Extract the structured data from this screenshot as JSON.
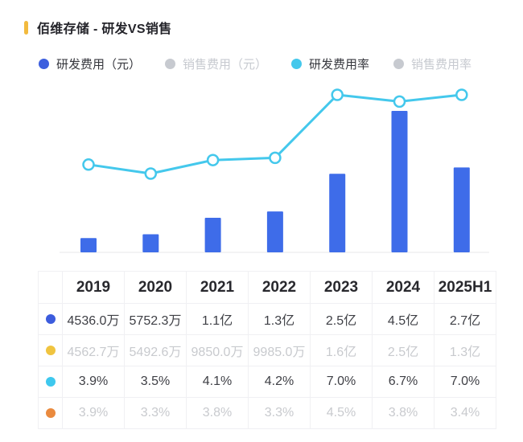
{
  "header": {
    "title": "佰维存储 - 研发VS销售",
    "accent_color": "#F2BA3E"
  },
  "legend": [
    {
      "label": "研发费用（元）",
      "color": "#3D5FDE",
      "active": true
    },
    {
      "label": "销售费用（元）",
      "color": "#C7CAD0",
      "active": false
    },
    {
      "label": "研发费用率",
      "color": "#44C8EC",
      "active": true
    },
    {
      "label": "销售费用率",
      "color": "#C7CAD0",
      "active": false
    }
  ],
  "chart_data": {
    "type": "bar+line combo",
    "categories": [
      "2019",
      "2020",
      "2021",
      "2022",
      "2023",
      "2024",
      "2025H1"
    ],
    "series": [
      {
        "name": "研发费用（元）",
        "type": "bar",
        "unit": "亿元",
        "color": "#3E6CE9",
        "visible": true,
        "values": [
          0.4536,
          0.57523,
          1.1,
          1.3,
          2.5,
          4.5,
          2.7
        ],
        "labels": [
          "4536.0万",
          "5752.3万",
          "1.1亿",
          "1.3亿",
          "2.5亿",
          "4.5亿",
          "2.7亿"
        ]
      },
      {
        "name": "销售费用（元）",
        "type": "bar",
        "unit": "亿元",
        "color": "#F0C440",
        "visible": false,
        "values": [
          0.45627,
          0.54926,
          0.985,
          0.9985,
          1.6,
          2.5,
          1.3
        ],
        "labels": [
          "4562.7万",
          "5492.6万",
          "9850.0万",
          "9985.0万",
          "1.6亿",
          "2.5亿",
          "1.3亿"
        ]
      },
      {
        "name": "研发费用率",
        "type": "line",
        "unit": "%",
        "color": "#44C8EC",
        "visible": true,
        "values": [
          3.9,
          3.5,
          4.1,
          4.2,
          7.0,
          6.7,
          7.0
        ],
        "labels": [
          "3.9%",
          "3.5%",
          "4.1%",
          "4.2%",
          "7.0%",
          "6.7%",
          "7.0%"
        ]
      },
      {
        "name": "销售费用率",
        "type": "line",
        "unit": "%",
        "color": "#EA8A3E",
        "visible": false,
        "values": [
          3.9,
          3.3,
          3.8,
          3.3,
          4.5,
          3.8,
          3.4
        ],
        "labels": [
          "3.9%",
          "3.3%",
          "3.8%",
          "3.3%",
          "4.5%",
          "3.8%",
          "3.4%"
        ]
      }
    ],
    "title": "佰维存储 - 研发VS销售",
    "xlabel": "",
    "ylabel": "",
    "bar_axis_max": 4.5,
    "rate_axis_max": 7.8,
    "grid": false,
    "legend_position": "top"
  },
  "table": {
    "header": [
      "2019",
      "2020",
      "2021",
      "2022",
      "2023",
      "2024",
      "2025H1"
    ],
    "rows": [
      {
        "dot_color": "#3C5CDD",
        "muted": false,
        "cells": [
          "4536.0万",
          "5752.3万",
          "1.1亿",
          "1.3亿",
          "2.5亿",
          "4.5亿",
          "2.7亿"
        ]
      },
      {
        "dot_color": "#F0C440",
        "muted": true,
        "cells": [
          "4562.7万",
          "5492.6万",
          "9850.0万",
          "9985.0万",
          "1.6亿",
          "2.5亿",
          "1.3亿"
        ]
      },
      {
        "dot_color": "#3EC8EE",
        "muted": false,
        "cells": [
          "3.9%",
          "3.5%",
          "4.1%",
          "4.2%",
          "7.0%",
          "6.7%",
          "7.0%"
        ]
      },
      {
        "dot_color": "#EA8A3E",
        "muted": true,
        "cells": [
          "3.9%",
          "3.3%",
          "3.8%",
          "3.3%",
          "4.5%",
          "3.8%",
          "3.4%"
        ]
      }
    ]
  }
}
